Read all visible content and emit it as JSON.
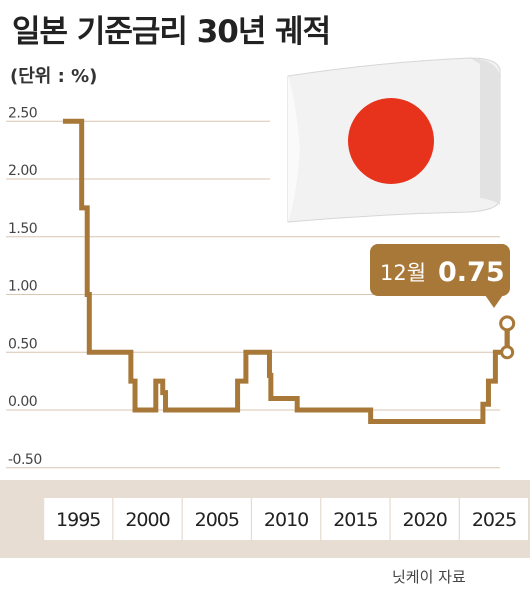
{
  "title": "일본 기준금리 30년 궤적",
  "unit": "(단위 : %)",
  "source": "닛케이 자료",
  "callout": {
    "month": "12월",
    "value": "0.75"
  },
  "colors": {
    "line": "#A87838",
    "callout_bg": "#A87838",
    "xaxis_band": "#E8DDD2",
    "year_box": "#FFFFFF",
    "grid": "#D8C6B2",
    "text": "#222222",
    "flag_red": "#E8331C"
  },
  "chart_data": {
    "type": "line",
    "title": "일본 기준금리 30년 궤적",
    "ylabel": "(단위 : %)",
    "xlabel": "",
    "ylim": [
      -0.5,
      2.5
    ],
    "yticks": [
      "2.50",
      "2.00",
      "1.50",
      "1.00",
      "0.50",
      "0.00",
      "-0.50"
    ],
    "xticks": [
      "1995",
      "2000",
      "2005",
      "2010",
      "2015",
      "2020",
      "2025"
    ],
    "grid": true,
    "step": true,
    "points": [
      {
        "x": 1993.9,
        "y": 2.5
      },
      {
        "x": 1995.25,
        "y": 1.75
      },
      {
        "x": 1995.65,
        "y": 1.0
      },
      {
        "x": 1995.8,
        "y": 0.5
      },
      {
        "x": 1998.8,
        "y": 0.25
      },
      {
        "x": 1999.1,
        "y": 0.0
      },
      {
        "x": 2000.6,
        "y": 0.25
      },
      {
        "x": 2001.1,
        "y": 0.15
      },
      {
        "x": 2001.3,
        "y": 0.0
      },
      {
        "x": 2006.5,
        "y": 0.25
      },
      {
        "x": 2007.1,
        "y": 0.5
      },
      {
        "x": 2008.8,
        "y": 0.3
      },
      {
        "x": 2008.9,
        "y": 0.1
      },
      {
        "x": 2010.8,
        "y": 0.0
      },
      {
        "x": 2016.1,
        "y": -0.1
      },
      {
        "x": 2024.2,
        "y": 0.05
      },
      {
        "x": 2024.6,
        "y": 0.25
      },
      {
        "x": 2025.1,
        "y": 0.5
      },
      {
        "x": 2025.95,
        "y": 0.75
      }
    ],
    "x_end": 2025.95,
    "annotation": {
      "x": 2025.95,
      "y": 0.75,
      "label": "12월 0.75"
    }
  }
}
